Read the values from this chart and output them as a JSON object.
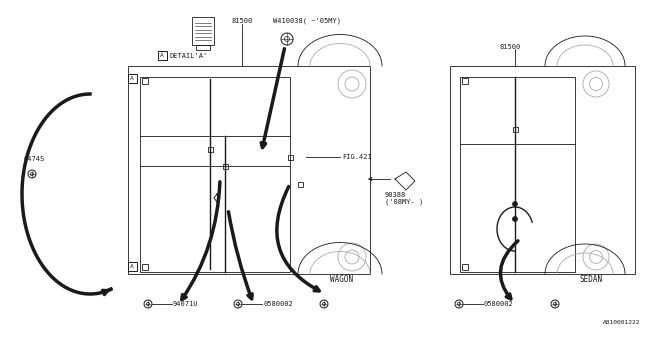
{
  "bg_color": "#ffffff",
  "line_color": "#1a1a1a",
  "gray_color": "#aaaaaa",
  "part_number": "A810001222",
  "labels": {
    "81500_top": "81500",
    "W410038": "W410038( ~'05MY)",
    "DETAIL_A": "DETAIL'A'",
    "0474S": "0474S",
    "FIG421": "FIG.421",
    "WAGON": "WAGON",
    "94071U": "94071U",
    "0580002_left": "0580002",
    "90388": "90388\n('08MY- )",
    "81500_right": "81500",
    "0580002_right": "0580002",
    "SEDAN": "SEDAN"
  }
}
